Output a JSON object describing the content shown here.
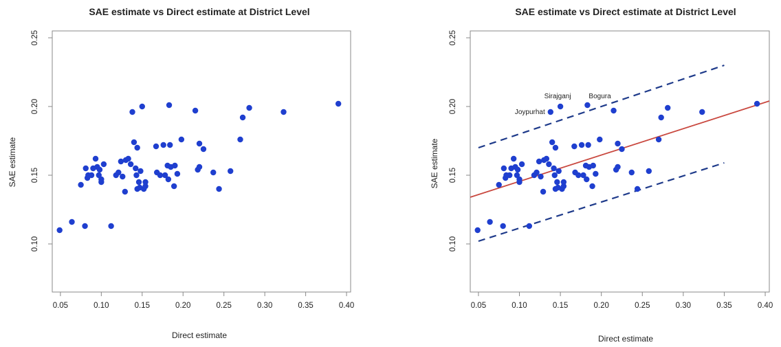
{
  "chart_data": [
    {
      "type": "scatter",
      "title": "SAE estimate vs Direct estimate at District Level",
      "xlabel": "Direct estimate",
      "ylabel": "SAE estimate",
      "xlim": [
        0.04,
        0.405
      ],
      "ylim": [
        0.065,
        0.255
      ],
      "xticks": [
        "0.05",
        "0.10",
        "0.15",
        "0.20",
        "0.25",
        "0.30",
        "0.35",
        "0.40"
      ],
      "yticks": [
        "0.10",
        "0.15",
        "0.20",
        "0.25"
      ],
      "marker_color": "#1f3fcf",
      "grid": false,
      "x": [
        0.049,
        0.064,
        0.075,
        0.08,
        0.081,
        0.083,
        0.084,
        0.088,
        0.09,
        0.093,
        0.095,
        0.097,
        0.098,
        0.1,
        0.1,
        0.103,
        0.112,
        0.118,
        0.121,
        0.124,
        0.126,
        0.129,
        0.13,
        0.133,
        0.136,
        0.138,
        0.14,
        0.142,
        0.143,
        0.144,
        0.144,
        0.146,
        0.147,
        0.148,
        0.15,
        0.152,
        0.154,
        0.154,
        0.167,
        0.168,
        0.172,
        0.176,
        0.178,
        0.181,
        0.182,
        0.183,
        0.184,
        0.185,
        0.189,
        0.19,
        0.193,
        0.198,
        0.215,
        0.218,
        0.22,
        0.22,
        0.225,
        0.237,
        0.244,
        0.258,
        0.27,
        0.273,
        0.281,
        0.323,
        0.39
      ],
      "y": [
        0.11,
        0.116,
        0.143,
        0.113,
        0.155,
        0.148,
        0.15,
        0.15,
        0.155,
        0.162,
        0.156,
        0.15,
        0.154,
        0.147,
        0.145,
        0.158,
        0.113,
        0.15,
        0.152,
        0.16,
        0.149,
        0.138,
        0.161,
        0.162,
        0.158,
        0.196,
        0.174,
        0.155,
        0.15,
        0.14,
        0.17,
        0.145,
        0.141,
        0.153,
        0.2,
        0.14,
        0.142,
        0.145,
        0.171,
        0.152,
        0.15,
        0.172,
        0.15,
        0.157,
        0.147,
        0.201,
        0.172,
        0.156,
        0.142,
        0.157,
        0.151,
        0.176,
        0.197,
        0.154,
        0.173,
        0.156,
        0.169,
        0.152,
        0.14,
        0.153,
        0.176,
        0.192,
        0.199,
        0.196,
        0.202
      ]
    },
    {
      "type": "scatter",
      "title": "SAE estimate vs Direct estimate at District Level",
      "xlabel": "Direct estimate",
      "ylabel": "SAE estimate",
      "xlim": [
        0.04,
        0.405
      ],
      "ylim": [
        0.065,
        0.255
      ],
      "xticks": [
        "0.05",
        "0.10",
        "0.15",
        "0.20",
        "0.25",
        "0.30",
        "0.35",
        "0.40"
      ],
      "yticks": [
        "0.10",
        "0.15",
        "0.20",
        "0.25"
      ],
      "marker_color": "#1f3fcf",
      "grid": false,
      "x": [
        0.049,
        0.064,
        0.075,
        0.08,
        0.081,
        0.083,
        0.084,
        0.088,
        0.09,
        0.093,
        0.095,
        0.097,
        0.098,
        0.1,
        0.1,
        0.103,
        0.112,
        0.118,
        0.121,
        0.124,
        0.126,
        0.129,
        0.13,
        0.133,
        0.136,
        0.138,
        0.14,
        0.142,
        0.143,
        0.144,
        0.144,
        0.146,
        0.147,
        0.148,
        0.15,
        0.152,
        0.154,
        0.154,
        0.167,
        0.168,
        0.172,
        0.176,
        0.178,
        0.181,
        0.182,
        0.183,
        0.184,
        0.185,
        0.189,
        0.19,
        0.193,
        0.198,
        0.215,
        0.218,
        0.22,
        0.22,
        0.225,
        0.237,
        0.244,
        0.258,
        0.27,
        0.273,
        0.281,
        0.323,
        0.39
      ],
      "y": [
        0.11,
        0.116,
        0.143,
        0.113,
        0.155,
        0.148,
        0.15,
        0.15,
        0.155,
        0.162,
        0.156,
        0.15,
        0.154,
        0.147,
        0.145,
        0.158,
        0.113,
        0.15,
        0.152,
        0.16,
        0.149,
        0.138,
        0.161,
        0.162,
        0.158,
        0.196,
        0.174,
        0.155,
        0.15,
        0.14,
        0.17,
        0.145,
        0.141,
        0.153,
        0.2,
        0.14,
        0.142,
        0.145,
        0.171,
        0.152,
        0.15,
        0.172,
        0.15,
        0.157,
        0.147,
        0.201,
        0.172,
        0.156,
        0.142,
        0.157,
        0.151,
        0.176,
        0.197,
        0.154,
        0.173,
        0.156,
        0.169,
        0.152,
        0.14,
        0.153,
        0.176,
        0.192,
        0.199,
        0.196,
        0.202
      ],
      "annotations": [
        {
          "text": "Joypurhat",
          "x": 0.138,
          "y": 0.196
        },
        {
          "text": "Sirajganj",
          "x": 0.15,
          "y": 0.2
        },
        {
          "text": "Bogura",
          "x": 0.183,
          "y": 0.201
        }
      ],
      "lines": [
        {
          "name": "fit",
          "style": "solid",
          "color": "#c9483f",
          "x": [
            0.04,
            0.405
          ],
          "y": [
            0.134,
            0.204
          ]
        },
        {
          "name": "upper-band",
          "style": "dashed",
          "color": "#1e3a8a",
          "x": [
            0.05,
            0.35
          ],
          "y": [
            0.17,
            0.23
          ]
        },
        {
          "name": "lower-band",
          "style": "dashed",
          "color": "#1e3a8a",
          "x": [
            0.05,
            0.35
          ],
          "y": [
            0.102,
            0.159
          ]
        }
      ]
    }
  ]
}
